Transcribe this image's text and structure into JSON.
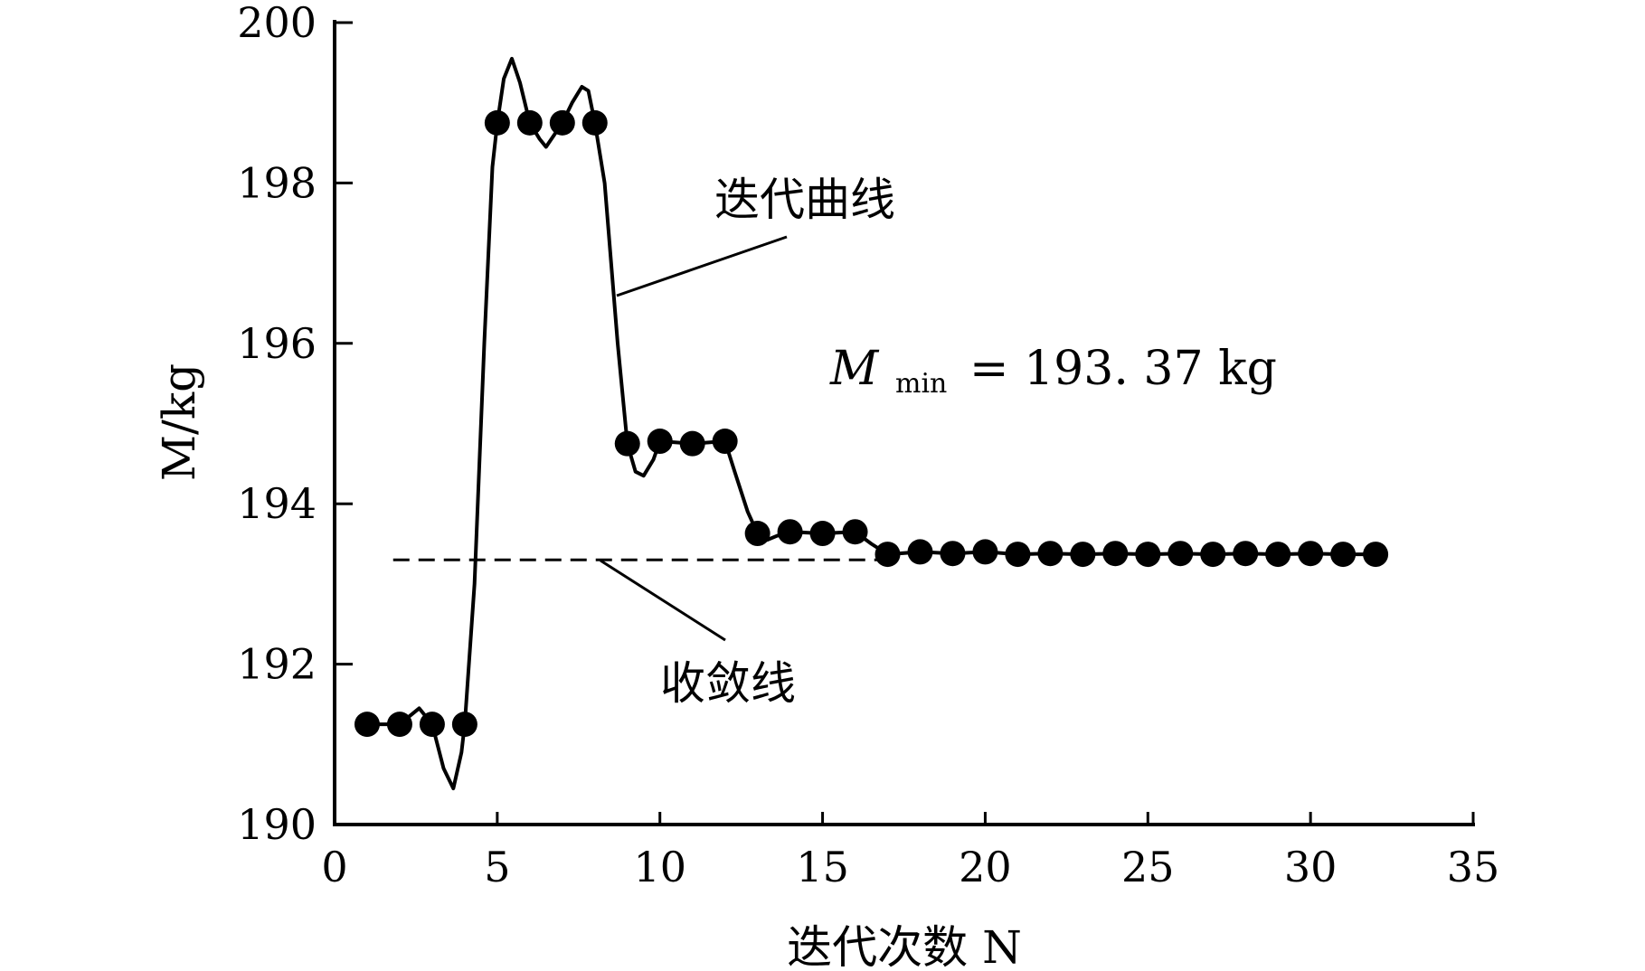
{
  "chart_data": {
    "type": "line",
    "xlabel": "迭代次数 N",
    "ylabel": "M/kg",
    "xlim": [
      0,
      35
    ],
    "ylim": [
      190,
      200
    ],
    "x_ticks": [
      0,
      5,
      10,
      15,
      20,
      25,
      30,
      35
    ],
    "y_ticks": [
      190,
      192,
      194,
      196,
      198,
      200
    ],
    "grid": false,
    "series": [
      {
        "marker": "filled-circle",
        "x": [
          1,
          2,
          3,
          4,
          5,
          6,
          7,
          8,
          9,
          10,
          11,
          12,
          13,
          14,
          15,
          16,
          17,
          18,
          19,
          20,
          21,
          22,
          23,
          24,
          25,
          26,
          27,
          28,
          29,
          30,
          31,
          32
        ],
        "values": [
          191.25,
          191.25,
          191.25,
          191.25,
          198.75,
          198.75,
          198.75,
          198.75,
          194.75,
          194.78,
          194.75,
          194.78,
          193.63,
          193.65,
          193.63,
          193.65,
          193.37,
          193.4,
          193.38,
          193.4,
          193.37,
          193.38,
          193.37,
          193.38,
          193.37,
          193.38,
          193.37,
          193.38,
          193.37,
          193.38,
          193.37,
          193.37
        ],
        "curve": [
          [
            1,
            191.25
          ],
          [
            2,
            191.25
          ],
          [
            2.6,
            191.45
          ],
          [
            3,
            191.25
          ],
          [
            3.35,
            190.7
          ],
          [
            3.65,
            190.45
          ],
          [
            3.9,
            190.9
          ],
          [
            4,
            191.25
          ],
          [
            4.3,
            193.0
          ],
          [
            4.6,
            196.0
          ],
          [
            4.85,
            198.2
          ],
          [
            5,
            198.75
          ],
          [
            5.2,
            199.3
          ],
          [
            5.45,
            199.55
          ],
          [
            5.7,
            199.25
          ],
          [
            6,
            198.75
          ],
          [
            6.3,
            198.55
          ],
          [
            6.5,
            198.45
          ],
          [
            6.75,
            198.6
          ],
          [
            7,
            198.75
          ],
          [
            7.3,
            199.0
          ],
          [
            7.6,
            199.2
          ],
          [
            7.8,
            199.15
          ],
          [
            8,
            198.75
          ],
          [
            8.3,
            198.0
          ],
          [
            8.7,
            196.0
          ],
          [
            9,
            194.75
          ],
          [
            9.25,
            194.4
          ],
          [
            9.5,
            194.35
          ],
          [
            9.8,
            194.55
          ],
          [
            10,
            194.78
          ],
          [
            11,
            194.75
          ],
          [
            12,
            194.78
          ],
          [
            12.3,
            194.4
          ],
          [
            12.7,
            193.9
          ],
          [
            13,
            193.63
          ],
          [
            13.3,
            193.55
          ],
          [
            13.6,
            193.6
          ],
          [
            14,
            193.65
          ],
          [
            15,
            193.63
          ],
          [
            16,
            193.65
          ],
          [
            16.5,
            193.5
          ],
          [
            17,
            193.37
          ],
          [
            18,
            193.4
          ],
          [
            19,
            193.38
          ],
          [
            20,
            193.4
          ],
          [
            21,
            193.37
          ],
          [
            22,
            193.38
          ],
          [
            23,
            193.37
          ],
          [
            24,
            193.38
          ],
          [
            25,
            193.37
          ],
          [
            26,
            193.38
          ],
          [
            27,
            193.37
          ],
          [
            28,
            193.38
          ],
          [
            29,
            193.37
          ],
          [
            30,
            193.38
          ],
          [
            31,
            193.37
          ],
          [
            32,
            193.37
          ]
        ]
      }
    ],
    "reference_line": {
      "y": 193.3,
      "x_from": 1.8,
      "x_to": 17.2,
      "style": "dashed"
    },
    "annotations": {
      "curve_label": "迭代曲线",
      "convergence_label": "收敛线",
      "min_symbol": "M",
      "min_subscript": "min",
      "min_value": "= 193. 37 kg"
    }
  }
}
